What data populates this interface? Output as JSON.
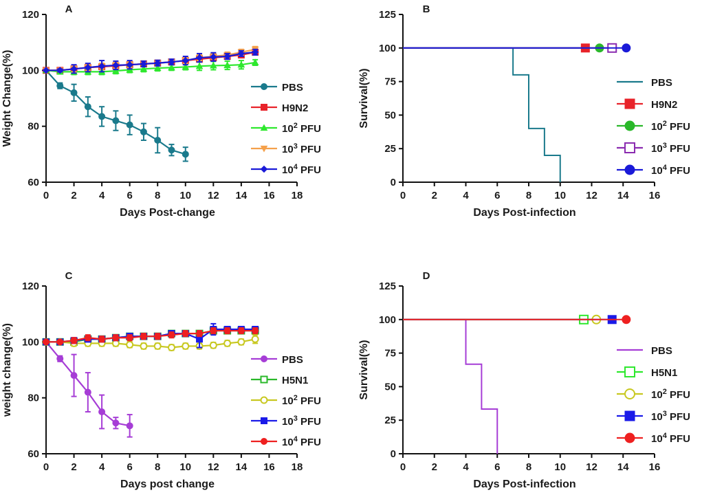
{
  "chart_data": [
    {
      "panel": "A",
      "type": "line",
      "xlabel": "Days Post-change",
      "ylabel": "Weight Change(%)",
      "xlim": [
        0,
        18
      ],
      "ylim": [
        60,
        120
      ],
      "xticks": [
        0,
        2,
        4,
        6,
        8,
        10,
        12,
        14,
        16,
        18
      ],
      "yticks": [
        60,
        80,
        100,
        120
      ],
      "legend_position": "right",
      "series": [
        {
          "name": "PBS",
          "sup": "",
          "color": "#1a7a8c",
          "marker": "circle",
          "filled": true,
          "x": [
            0,
            1,
            2,
            3,
            4,
            5,
            6,
            7,
            8,
            9,
            10
          ],
          "y": [
            100,
            94.5,
            92,
            87,
            83.5,
            82,
            80.5,
            78,
            75,
            71.5,
            70
          ],
          "err": [
            0,
            1,
            3,
            3.5,
            3.5,
            3.5,
            3.5,
            3,
            4.5,
            2,
            2.5
          ]
        },
        {
          "name": "H9N2",
          "sup": "",
          "color": "#e8232a",
          "marker": "square",
          "filled": true,
          "x": [
            0,
            1,
            2,
            3,
            4,
            5,
            6,
            7,
            8,
            9,
            10,
            11,
            12,
            13,
            14,
            15
          ],
          "y": [
            100,
            100,
            100.5,
            101,
            101.3,
            101.6,
            102,
            102.3,
            102.6,
            103,
            103.5,
            104,
            104.5,
            105,
            105.5,
            106.5
          ],
          "err": [
            0,
            0.5,
            1,
            1,
            1,
            1,
            1,
            1,
            1,
            1,
            1,
            1,
            1,
            1,
            1,
            1
          ]
        },
        {
          "name": "10",
          "sup": "2",
          "suffix": " PFU",
          "color": "#2ee82e",
          "marker": "triangle",
          "filled": true,
          "x": [
            0,
            1,
            2,
            3,
            4,
            5,
            6,
            7,
            8,
            9,
            10,
            11,
            12,
            13,
            14,
            15
          ],
          "y": [
            100,
            99.5,
            99.5,
            99.5,
            99.5,
            99.8,
            100.2,
            100.5,
            100.8,
            101,
            101.2,
            101.5,
            101.7,
            101.8,
            102,
            102.8
          ],
          "err": [
            0,
            0.8,
            1,
            1,
            1,
            1,
            1,
            1,
            1,
            1,
            1,
            1.5,
            1.5,
            1.5,
            1.5,
            1
          ]
        },
        {
          "name": "10",
          "sup": "3",
          "suffix": " PFU",
          "color": "#f5a04a",
          "marker": "triangle-down",
          "filled": true,
          "x": [
            0,
            1,
            2,
            3,
            4,
            5,
            6,
            7,
            8,
            9,
            10,
            11,
            12,
            13,
            14,
            15
          ],
          "y": [
            100,
            100,
            100.5,
            101,
            101.5,
            101.8,
            102,
            102.3,
            102.6,
            103,
            103.5,
            104.5,
            105,
            105.5,
            106.5,
            107.5
          ],
          "err": [
            0,
            0.5,
            1,
            1,
            1,
            1,
            1,
            1,
            1,
            1,
            1,
            1,
            1,
            1,
            1,
            1
          ]
        },
        {
          "name": "10",
          "sup": "4",
          "suffix": " PFU",
          "color": "#1a1ad8",
          "marker": "diamond",
          "filled": true,
          "x": [
            0,
            1,
            2,
            3,
            4,
            5,
            6,
            7,
            8,
            9,
            10,
            11,
            12,
            13,
            14,
            15
          ],
          "y": [
            100,
            100,
            100.5,
            101,
            101.5,
            101.8,
            102,
            102.3,
            102.6,
            103,
            103.5,
            104.5,
            104.8,
            105,
            106,
            106.5
          ],
          "err": [
            0,
            0.5,
            1.5,
            1.5,
            2,
            1.5,
            1.5,
            1,
            1,
            1,
            1.5,
            1.5,
            1.5,
            1,
            1,
            1
          ]
        }
      ]
    },
    {
      "panel": "B",
      "type": "step",
      "xlabel": "Days Post-infection",
      "ylabel": "Survival(%)",
      "xlim": [
        0,
        16
      ],
      "ylim": [
        0,
        125
      ],
      "xticks": [
        0,
        2,
        4,
        6,
        8,
        10,
        12,
        14,
        16
      ],
      "yticks": [
        0,
        25,
        50,
        75,
        100,
        125
      ],
      "legend_position": "right",
      "series": [
        {
          "name": "PBS",
          "sup": "",
          "color": "#1a7a8c",
          "marker": "line",
          "filled": true,
          "x": [
            0,
            7,
            8,
            9,
            10
          ],
          "y": [
            100,
            80,
            40,
            20,
            0
          ],
          "end_marker_x": null
        },
        {
          "name": "H9N2",
          "sup": "",
          "color": "#e8232a",
          "marker": "square",
          "filled": true,
          "x": [
            0
          ],
          "y": [
            100
          ],
          "end_marker_x": 11.6
        },
        {
          "name": "10",
          "sup": "2",
          "suffix": " PFU",
          "color": "#2ab82a",
          "marker": "circle",
          "filled": true,
          "x": [
            0
          ],
          "y": [
            100
          ],
          "end_marker_x": 12.5
        },
        {
          "name": "10",
          "sup": "3",
          "suffix": " PFU",
          "color": "#8a2bb0",
          "marker": "square",
          "filled": false,
          "x": [
            0
          ],
          "y": [
            100
          ],
          "end_marker_x": 13.3
        },
        {
          "name": "10",
          "sup": "4",
          "suffix": " PFU",
          "color": "#1a1ad8",
          "marker": "circle",
          "filled": true,
          "x": [
            0
          ],
          "y": [
            100
          ],
          "end_marker_x": 14.2
        }
      ]
    },
    {
      "panel": "C",
      "type": "line",
      "xlabel": "Days post change",
      "ylabel": "weight change(%)",
      "xlim": [
        0,
        18
      ],
      "ylim": [
        60,
        120
      ],
      "xticks": [
        0,
        2,
        4,
        6,
        8,
        10,
        12,
        14,
        16,
        18
      ],
      "yticks": [
        60,
        80,
        100,
        120
      ],
      "legend_position": "right",
      "series": [
        {
          "name": "PBS",
          "sup": "",
          "color": "#a63dd6",
          "marker": "circle",
          "filled": true,
          "x": [
            0,
            1,
            2,
            3,
            4,
            5,
            6
          ],
          "y": [
            100,
            94,
            88,
            82,
            75,
            71,
            70
          ],
          "err": [
            0,
            1,
            7.5,
            7,
            6,
            2,
            4
          ]
        },
        {
          "name": "H5N1",
          "sup": "",
          "color": "#2ab82a",
          "marker": "square",
          "filled": false,
          "x": [
            0,
            1,
            2,
            3,
            4,
            5,
            6,
            7,
            8,
            9,
            10,
            11,
            12,
            13,
            14,
            15
          ],
          "y": [
            100,
            100,
            100,
            101,
            101,
            101.5,
            102,
            102,
            102,
            103,
            103,
            103,
            104,
            104,
            104,
            104
          ],
          "err": [
            0,
            0.5,
            1,
            1,
            1,
            1,
            1,
            1,
            1,
            1,
            1,
            1,
            1,
            1,
            1,
            1
          ]
        },
        {
          "name": "10",
          "sup": "2",
          "suffix": " PFU",
          "color": "#c8c820",
          "marker": "circle",
          "filled": false,
          "x": [
            0,
            1,
            2,
            3,
            4,
            5,
            6,
            7,
            8,
            9,
            10,
            11,
            12,
            13,
            14,
            15
          ],
          "y": [
            100,
            100,
            99.5,
            99.5,
            99.5,
            99.5,
            99,
            98.5,
            98.5,
            98,
            98.5,
            98.5,
            98.8,
            99.5,
            100,
            101
          ],
          "err": [
            0,
            0.5,
            1,
            1,
            1,
            1,
            1,
            1,
            1,
            1,
            1,
            1,
            1,
            1,
            1,
            1.5
          ]
        },
        {
          "name": "10",
          "sup": "3",
          "suffix": " PFU",
          "color": "#1a1ae8",
          "marker": "square",
          "filled": true,
          "x": [
            0,
            1,
            2,
            3,
            4,
            5,
            6,
            7,
            8,
            9,
            10,
            11,
            12,
            13,
            14,
            15
          ],
          "y": [
            100,
            100,
            100.5,
            101,
            101,
            101.5,
            102,
            102,
            102,
            103,
            103,
            101,
            104.5,
            104.5,
            104.5,
            104.5
          ],
          "err": [
            0,
            0.5,
            1,
            1,
            1,
            1,
            1,
            1,
            1,
            1,
            1,
            3,
            2,
            1,
            1,
            1
          ]
        },
        {
          "name": "10",
          "sup": "4",
          "suffix": " PFU",
          "color": "#ee2020",
          "marker": "circle",
          "filled": true,
          "x": [
            0,
            1,
            2,
            3,
            4,
            5,
            6,
            7,
            8,
            9,
            10,
            11,
            12,
            13,
            14,
            15
          ],
          "y": [
            100,
            100,
            100.5,
            101.5,
            101,
            101.5,
            101.5,
            102,
            102,
            102.5,
            103,
            103,
            104,
            104,
            104,
            104
          ],
          "err": [
            0,
            0.5,
            1,
            1,
            1,
            1,
            1,
            1,
            1,
            1,
            1,
            1,
            1,
            1,
            1,
            1
          ]
        }
      ]
    },
    {
      "panel": "D",
      "type": "step",
      "xlabel": "Days Post-infection",
      "ylabel": "Survival(%)",
      "xlim": [
        0,
        16
      ],
      "ylim": [
        0,
        125
      ],
      "xticks": [
        0,
        2,
        4,
        6,
        8,
        10,
        12,
        14,
        16
      ],
      "yticks": [
        0,
        25,
        50,
        75,
        100,
        125
      ],
      "legend_position": "right",
      "series": [
        {
          "name": "PBS",
          "sup": "",
          "color": "#a63dd6",
          "marker": "line",
          "filled": true,
          "x": [
            0,
            4,
            5,
            6
          ],
          "y": [
            100,
            66.7,
            33.3,
            0
          ],
          "end_marker_x": null
        },
        {
          "name": "H5N1",
          "sup": "",
          "color": "#2ee82e",
          "marker": "square",
          "filled": false,
          "x": [
            0
          ],
          "y": [
            100
          ],
          "end_marker_x": 11.5
        },
        {
          "name": "10",
          "sup": "2",
          "suffix": " PFU",
          "color": "#c8c820",
          "marker": "circle",
          "filled": false,
          "x": [
            0
          ],
          "y": [
            100
          ],
          "end_marker_x": 12.3
        },
        {
          "name": "10",
          "sup": "3",
          "suffix": " PFU",
          "color": "#1a1ae8",
          "marker": "square",
          "filled": true,
          "x": [
            0
          ],
          "y": [
            100
          ],
          "end_marker_x": 13.3
        },
        {
          "name": "10",
          "sup": "4",
          "suffix": " PFU",
          "color": "#ee2020",
          "marker": "circle",
          "filled": true,
          "x": [
            0
          ],
          "y": [
            100
          ],
          "end_marker_x": 14.2
        }
      ]
    }
  ]
}
